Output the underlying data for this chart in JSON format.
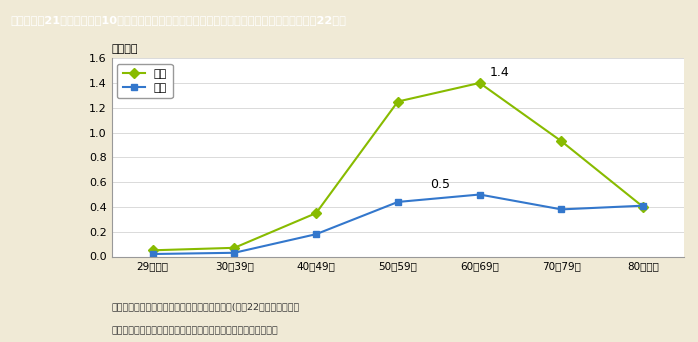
{
  "title": "第１－特－21図　要介護者10万人に対する同居の介護・看護者数：年齢階級別（男女別，平成22年）",
  "ylabel": "（万人）",
  "categories": [
    "29歳以下",
    "30～39歳",
    "40～49歳",
    "50～59歳",
    "60～69歳",
    "70～79歳",
    "80歳以上"
  ],
  "female_values": [
    0.05,
    0.07,
    0.35,
    1.25,
    1.4,
    0.93,
    0.4
  ],
  "male_values": [
    0.02,
    0.03,
    0.18,
    0.44,
    0.5,
    0.38,
    0.41
  ],
  "female_label": "女性",
  "male_label": "男性",
  "female_color": "#88bb00",
  "male_color": "#3377cc",
  "female_annotation_idx": 4,
  "female_annotation_text": "1.4",
  "male_annotation_idx": 4,
  "male_annotation_text": "0.5",
  "ylim": [
    0.0,
    1.6
  ],
  "yticks": [
    0.0,
    0.2,
    0.4,
    0.6,
    0.8,
    1.0,
    1.2,
    1.4,
    1.6
  ],
  "background_color": "#f0ead6",
  "plot_background_color": "#ffffff",
  "title_bg_color": "#7b6b4e",
  "title_text_color": "#ffffff",
  "note_line1": "（参考）１．厉生労働省「国民生活基礎調査」(平成22年）より作成。",
  "note_line2": "　　　　２．要介護者には，要支援者及び要介護度不詳を含む。"
}
